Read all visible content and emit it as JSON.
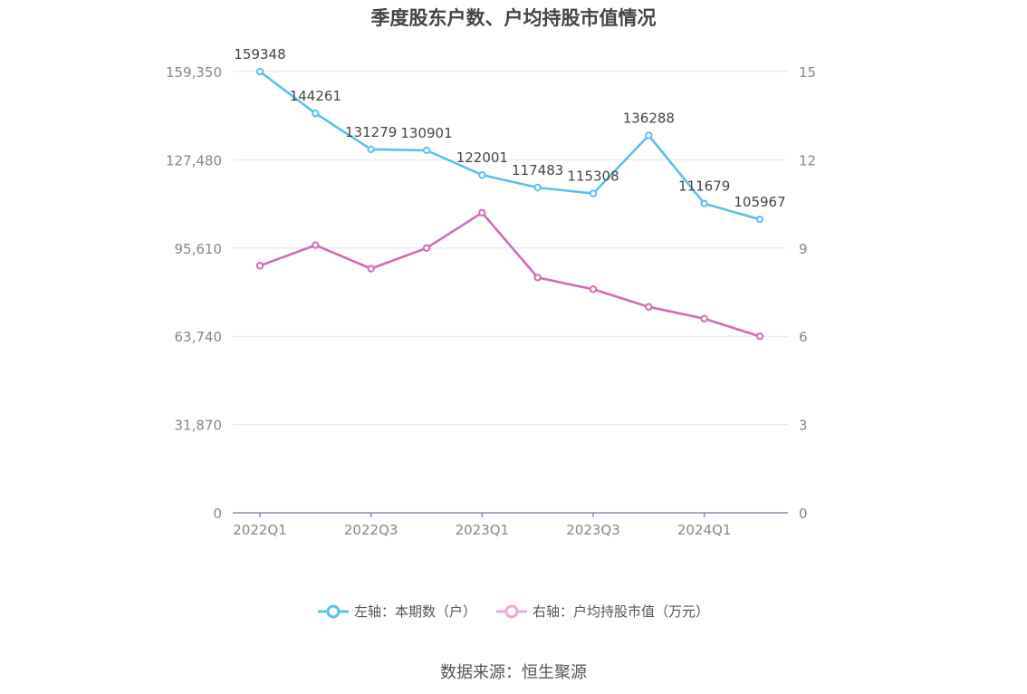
{
  "chart_data": {
    "type": "line",
    "title": "季度股东户数、户均持股市值情况",
    "categories": [
      "2022Q1",
      "2022Q2",
      "2022Q3",
      "2022Q4",
      "2023Q1",
      "2023Q2",
      "2023Q3",
      "2023Q4",
      "2024Q1",
      "2024Q2"
    ],
    "x_tick_labels": [
      "2022Q1",
      "2022Q3",
      "2023Q1",
      "2023Q3",
      "2024Q1"
    ],
    "left_axis": {
      "min": 0,
      "max": 159350,
      "ticks": [
        "0",
        "31,870",
        "63,740",
        "95,610",
        "127,480",
        "159,350"
      ]
    },
    "right_axis": {
      "min": 0,
      "max": 15,
      "ticks": [
        "0",
        "3",
        "6",
        "9",
        "12",
        "15"
      ]
    },
    "series": [
      {
        "name": "左轴：本期数（户）",
        "axis": "left",
        "color": "#5bc0eb",
        "values": [
          159348,
          144261,
          131279,
          130901,
          122001,
          117483,
          115308,
          136288,
          111679,
          105967
        ],
        "labels": [
          "159348",
          "144261",
          "131279",
          "130901",
          "122001",
          "117483",
          "115308",
          "136288",
          "111679",
          "105967"
        ]
      },
      {
        "name": "右轴：户均持股市值（万元）",
        "axis": "right",
        "color": "#d36bb5",
        "values": [
          8.4,
          9.1,
          8.3,
          9.0,
          10.2,
          8.0,
          7.6,
          7.0,
          6.6,
          6.0
        ]
      }
    ],
    "grid": true,
    "legend_position": "bottom-center",
    "source": "数据来源：恒生聚源"
  }
}
